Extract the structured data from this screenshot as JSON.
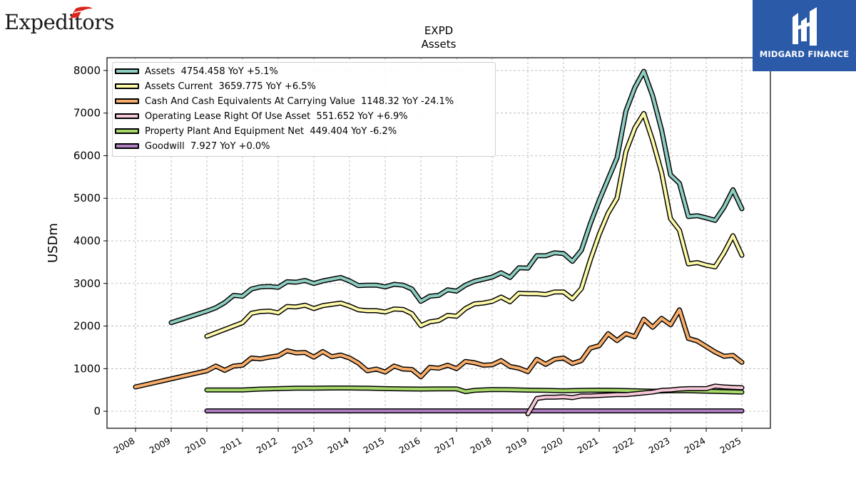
{
  "branding": {
    "left_logo_text": "Expeditors",
    "right_logo_text": "MIDGARD FINANCE",
    "right_logo_bg": "#2a5aa8"
  },
  "chart_data": {
    "type": "line",
    "title": "EXPD",
    "subtitle": "Assets",
    "xlabel": "",
    "ylabel": "USDm",
    "ylim": [
      -400,
      8300
    ],
    "xlim": [
      2007.2,
      2025.8
    ],
    "yticks": [
      0,
      1000,
      2000,
      3000,
      4000,
      5000,
      6000,
      7000,
      8000
    ],
    "xticks": [
      "2008",
      "2009",
      "2010",
      "2011",
      "2012",
      "2013",
      "2014",
      "2015",
      "2016",
      "2017",
      "2018",
      "2019",
      "2020",
      "2021",
      "2022",
      "2023",
      "2024",
      "2025"
    ],
    "grid": true,
    "legend_position": "top-left",
    "legend": [
      "Assets  4754.458 YoY +5.1%",
      "Assets Current  3659.775 YoY +6.5%",
      "Cash And Cash Equivalents At Carrying Value  1148.32 YoY -24.1%",
      "Operating Lease Right Of Use Asset  551.652 YoY +6.9%",
      "Property Plant And Equipment Net  449.404 YoY -6.2%",
      "Goodwill  7.927 YoY +0.0%"
    ],
    "series": [
      {
        "name": "Assets",
        "color": "#8ecdc1",
        "points": [
          [
            2009.0,
            2080
          ],
          [
            2010.0,
            2350
          ],
          [
            2010.25,
            2430
          ],
          [
            2010.5,
            2550
          ],
          [
            2010.75,
            2720
          ],
          [
            2011.0,
            2700
          ],
          [
            2011.25,
            2870
          ],
          [
            2011.5,
            2920
          ],
          [
            2011.75,
            2930
          ],
          [
            2012.0,
            2910
          ],
          [
            2012.25,
            3040
          ],
          [
            2012.5,
            3030
          ],
          [
            2012.75,
            3070
          ],
          [
            2013.0,
            3000
          ],
          [
            2013.25,
            3060
          ],
          [
            2013.5,
            3100
          ],
          [
            2013.75,
            3140
          ],
          [
            2014.0,
            3060
          ],
          [
            2014.25,
            2950
          ],
          [
            2014.5,
            2960
          ],
          [
            2014.75,
            2960
          ],
          [
            2015.0,
            2920
          ],
          [
            2015.25,
            2980
          ],
          [
            2015.5,
            2960
          ],
          [
            2015.75,
            2870
          ],
          [
            2016.0,
            2580
          ],
          [
            2016.25,
            2700
          ],
          [
            2016.5,
            2720
          ],
          [
            2016.75,
            2850
          ],
          [
            2017.0,
            2820
          ],
          [
            2017.25,
            2960
          ],
          [
            2017.5,
            3050
          ],
          [
            2017.75,
            3100
          ],
          [
            2018.0,
            3150
          ],
          [
            2018.25,
            3250
          ],
          [
            2018.5,
            3140
          ],
          [
            2018.75,
            3370
          ],
          [
            2019.0,
            3360
          ],
          [
            2019.25,
            3650
          ],
          [
            2019.5,
            3650
          ],
          [
            2019.75,
            3720
          ],
          [
            2020.0,
            3700
          ],
          [
            2020.25,
            3520
          ],
          [
            2020.5,
            3780
          ],
          [
            2020.75,
            4400
          ],
          [
            2021.0,
            4950
          ],
          [
            2021.25,
            5450
          ],
          [
            2021.5,
            5950
          ],
          [
            2021.75,
            7050
          ],
          [
            2022.0,
            7600
          ],
          [
            2022.25,
            7980
          ],
          [
            2022.5,
            7400
          ],
          [
            2022.75,
            6600
          ],
          [
            2023.0,
            5550
          ],
          [
            2023.25,
            5350
          ],
          [
            2023.5,
            4570
          ],
          [
            2023.75,
            4590
          ],
          [
            2024.0,
            4540
          ],
          [
            2024.25,
            4480
          ],
          [
            2024.5,
            4790
          ],
          [
            2024.75,
            5200
          ],
          [
            2025.0,
            4754
          ]
        ]
      },
      {
        "name": "Assets Current",
        "color": "#fdf9a9",
        "points": [
          [
            2010.0,
            1760
          ],
          [
            2011.0,
            2080
          ],
          [
            2011.25,
            2300
          ],
          [
            2011.5,
            2340
          ],
          [
            2011.75,
            2350
          ],
          [
            2012.0,
            2310
          ],
          [
            2012.25,
            2460
          ],
          [
            2012.5,
            2450
          ],
          [
            2012.75,
            2490
          ],
          [
            2013.0,
            2410
          ],
          [
            2013.25,
            2480
          ],
          [
            2013.5,
            2510
          ],
          [
            2013.75,
            2540
          ],
          [
            2014.0,
            2470
          ],
          [
            2014.25,
            2380
          ],
          [
            2014.5,
            2360
          ],
          [
            2014.75,
            2360
          ],
          [
            2015.0,
            2330
          ],
          [
            2015.25,
            2400
          ],
          [
            2015.5,
            2390
          ],
          [
            2015.75,
            2290
          ],
          [
            2016.0,
            2010
          ],
          [
            2016.25,
            2100
          ],
          [
            2016.5,
            2130
          ],
          [
            2016.75,
            2250
          ],
          [
            2017.0,
            2230
          ],
          [
            2017.25,
            2410
          ],
          [
            2017.5,
            2520
          ],
          [
            2017.75,
            2540
          ],
          [
            2018.0,
            2580
          ],
          [
            2018.25,
            2680
          ],
          [
            2018.5,
            2570
          ],
          [
            2018.75,
            2770
          ],
          [
            2019.0,
            2760
          ],
          [
            2019.25,
            2760
          ],
          [
            2019.5,
            2740
          ],
          [
            2019.75,
            2800
          ],
          [
            2020.0,
            2800
          ],
          [
            2020.25,
            2640
          ],
          [
            2020.5,
            2880
          ],
          [
            2020.75,
            3550
          ],
          [
            2021.0,
            4150
          ],
          [
            2021.25,
            4650
          ],
          [
            2021.5,
            5000
          ],
          [
            2021.75,
            6100
          ],
          [
            2022.0,
            6650
          ],
          [
            2022.25,
            6990
          ],
          [
            2022.5,
            6350
          ],
          [
            2022.75,
            5600
          ],
          [
            2023.0,
            4520
          ],
          [
            2023.25,
            4250
          ],
          [
            2023.5,
            3460
          ],
          [
            2023.75,
            3490
          ],
          [
            2024.0,
            3430
          ],
          [
            2024.25,
            3390
          ],
          [
            2024.5,
            3720
          ],
          [
            2024.75,
            4120
          ],
          [
            2025.0,
            3660
          ]
        ]
      },
      {
        "name": "Cash And Cash Equivalents At Carrying Value",
        "color": "#f8ae6b",
        "points": [
          [
            2008.0,
            570
          ],
          [
            2010.0,
            950
          ],
          [
            2010.25,
            1060
          ],
          [
            2010.5,
            960
          ],
          [
            2010.75,
            1060
          ],
          [
            2011.0,
            1080
          ],
          [
            2011.25,
            1250
          ],
          [
            2011.5,
            1230
          ],
          [
            2011.75,
            1270
          ],
          [
            2012.0,
            1300
          ],
          [
            2012.25,
            1420
          ],
          [
            2012.5,
            1370
          ],
          [
            2012.75,
            1380
          ],
          [
            2013.0,
            1270
          ],
          [
            2013.25,
            1400
          ],
          [
            2013.5,
            1280
          ],
          [
            2013.75,
            1320
          ],
          [
            2014.0,
            1250
          ],
          [
            2014.25,
            1130
          ],
          [
            2014.5,
            950
          ],
          [
            2014.75,
            990
          ],
          [
            2015.0,
            920
          ],
          [
            2015.25,
            1060
          ],
          [
            2015.5,
            990
          ],
          [
            2015.75,
            980
          ],
          [
            2016.0,
            810
          ],
          [
            2016.25,
            1030
          ],
          [
            2016.5,
            1010
          ],
          [
            2016.75,
            1080
          ],
          [
            2017.0,
            1000
          ],
          [
            2017.25,
            1170
          ],
          [
            2017.5,
            1140
          ],
          [
            2017.75,
            1080
          ],
          [
            2018.0,
            1090
          ],
          [
            2018.25,
            1190
          ],
          [
            2018.5,
            1050
          ],
          [
            2018.75,
            1010
          ],
          [
            2019.0,
            930
          ],
          [
            2019.25,
            1220
          ],
          [
            2019.5,
            1100
          ],
          [
            2019.75,
            1220
          ],
          [
            2020.0,
            1250
          ],
          [
            2020.25,
            1120
          ],
          [
            2020.5,
            1190
          ],
          [
            2020.75,
            1480
          ],
          [
            2021.0,
            1540
          ],
          [
            2021.25,
            1820
          ],
          [
            2021.5,
            1660
          ],
          [
            2021.75,
            1820
          ],
          [
            2022.0,
            1750
          ],
          [
            2022.25,
            2160
          ],
          [
            2022.5,
            1970
          ],
          [
            2022.75,
            2180
          ],
          [
            2023.0,
            2030
          ],
          [
            2023.25,
            2380
          ],
          [
            2023.5,
            1710
          ],
          [
            2023.75,
            1650
          ],
          [
            2024.0,
            1520
          ],
          [
            2024.25,
            1390
          ],
          [
            2024.5,
            1290
          ],
          [
            2024.75,
            1310
          ],
          [
            2025.0,
            1148
          ]
        ]
      },
      {
        "name": "Operating Lease Right Of Use Asset",
        "color": "#f7c9d8",
        "points": [
          [
            2019.0,
            -60
          ],
          [
            2019.25,
            300
          ],
          [
            2019.5,
            330
          ],
          [
            2019.75,
            330
          ],
          [
            2020.0,
            340
          ],
          [
            2020.25,
            320
          ],
          [
            2020.5,
            360
          ],
          [
            2020.75,
            360
          ],
          [
            2021.0,
            370
          ],
          [
            2021.25,
            380
          ],
          [
            2021.5,
            390
          ],
          [
            2021.75,
            390
          ],
          [
            2022.0,
            410
          ],
          [
            2022.25,
            430
          ],
          [
            2022.5,
            450
          ],
          [
            2022.75,
            490
          ],
          [
            2023.0,
            500
          ],
          [
            2023.25,
            520
          ],
          [
            2023.5,
            530
          ],
          [
            2023.75,
            530
          ],
          [
            2024.0,
            530
          ],
          [
            2024.25,
            590
          ],
          [
            2024.5,
            570
          ],
          [
            2024.75,
            560
          ],
          [
            2025.0,
            552
          ]
        ]
      },
      {
        "name": "Property Plant And Equipment Net",
        "color": "#a6d96a",
        "points": [
          [
            2010.0,
            500
          ],
          [
            2011.0,
            500
          ],
          [
            2011.5,
            520
          ],
          [
            2012.0,
            530
          ],
          [
            2012.5,
            540
          ],
          [
            2013.0,
            540
          ],
          [
            2013.5,
            545
          ],
          [
            2014.0,
            545
          ],
          [
            2014.5,
            540
          ],
          [
            2015.0,
            530
          ],
          [
            2015.5,
            525
          ],
          [
            2016.0,
            520
          ],
          [
            2016.5,
            525
          ],
          [
            2017.0,
            525
          ],
          [
            2017.25,
            460
          ],
          [
            2017.5,
            490
          ],
          [
            2018.0,
            510
          ],
          [
            2018.5,
            505
          ],
          [
            2019.0,
            495
          ],
          [
            2019.5,
            490
          ],
          [
            2020.0,
            480
          ],
          [
            2020.5,
            490
          ],
          [
            2021.0,
            495
          ],
          [
            2021.5,
            490
          ],
          [
            2022.0,
            480
          ],
          [
            2022.5,
            470
          ],
          [
            2023.0,
            480
          ],
          [
            2023.5,
            480
          ],
          [
            2024.0,
            470
          ],
          [
            2024.5,
            460
          ],
          [
            2025.0,
            449
          ]
        ]
      },
      {
        "name": "Goodwill",
        "color": "#b07fc4",
        "points": [
          [
            2010.0,
            8
          ],
          [
            2025.0,
            8
          ]
        ]
      }
    ]
  }
}
